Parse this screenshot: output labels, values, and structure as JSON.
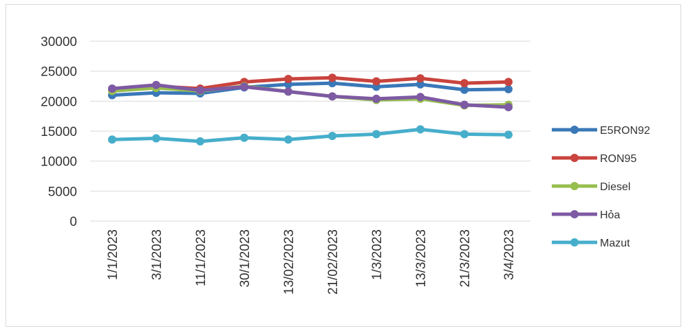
{
  "chart_data": {
    "type": "line",
    "categories": [
      "1/1/2023",
      "3/1/2023",
      "11/1/2023",
      "30/1/2023",
      "13/02/2023",
      "21/02/2023",
      "1/3/2023",
      "13/3/2023",
      "21/3/2023",
      "3/4/2023"
    ],
    "ylim": [
      0,
      30000
    ],
    "yticks": [
      0,
      5000,
      10000,
      15000,
      20000,
      25000,
      30000
    ],
    "grid": true,
    "legend": "right",
    "series": [
      {
        "name": "E5RON92",
        "color": "#3a78b8",
        "values": [
          21000,
          21400,
          21300,
          22300,
          22800,
          23000,
          22400,
          22800,
          21900,
          22000
        ]
      },
      {
        "name": "RON95",
        "color": "#c9443e",
        "values": [
          21800,
          22500,
          22100,
          23200,
          23700,
          23900,
          23300,
          23800,
          23000,
          23200
        ]
      },
      {
        "name": "Diesel",
        "color": "#96be4e",
        "values": [
          21700,
          22200,
          21700,
          22500,
          21600,
          20800,
          20200,
          20400,
          19300,
          19400
        ]
      },
      {
        "name": "Hỏa",
        "color": "#7d5aa3",
        "values": [
          22100,
          22700,
          21800,
          22400,
          21600,
          20800,
          20400,
          20700,
          19400,
          19000
        ]
      },
      {
        "name": "Mazut",
        "color": "#46aecb",
        "values": [
          13600,
          13800,
          13300,
          13900,
          13600,
          14200,
          14500,
          15300,
          14500,
          14400
        ]
      }
    ]
  }
}
